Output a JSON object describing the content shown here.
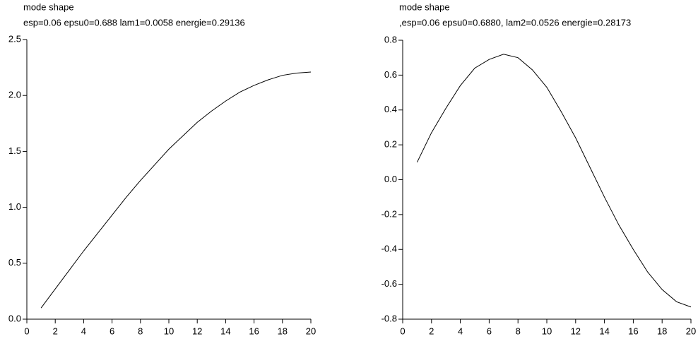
{
  "chart_data": [
    {
      "type": "line",
      "title": "mode shape",
      "subtitle": "esp=0.06 epsu0=0.688 lam1=0.0058 energie=0.29136",
      "x": [
        1,
        2,
        3,
        4,
        5,
        6,
        7,
        8,
        9,
        10,
        11,
        12,
        13,
        14,
        15,
        16,
        17,
        18,
        19,
        20
      ],
      "values": [
        0.1,
        0.27,
        0.44,
        0.61,
        0.77,
        0.93,
        1.09,
        1.24,
        1.38,
        1.52,
        1.64,
        1.76,
        1.86,
        1.95,
        2.03,
        2.09,
        2.14,
        2.18,
        2.2,
        2.21
      ],
      "color": "#000000",
      "xlim": [
        0,
        20
      ],
      "xticks": [
        0,
        2,
        4,
        6,
        8,
        10,
        12,
        14,
        16,
        18,
        20
      ],
      "ylim": [
        0,
        2.5
      ],
      "yticks": [
        {
          "value": 0,
          "label": "0.0"
        },
        0.5,
        {
          "value": 1,
          "label": "1.0"
        },
        1.5,
        {
          "value": 2,
          "label": "2.0"
        },
        2.5
      ]
    },
    {
      "type": "line",
      "title": "mode shape",
      "subtitle": ",esp=0.06 epsu0=0.6880, lam2=0.0526 energie=0.28173",
      "x": [
        1,
        2,
        3,
        4,
        5,
        6,
        7,
        8,
        9,
        10,
        11,
        12,
        13,
        14,
        15,
        16,
        17,
        18,
        19,
        20
      ],
      "values": [
        0.1,
        0.27,
        0.41,
        0.54,
        0.64,
        0.69,
        0.72,
        0.7,
        0.63,
        0.53,
        0.39,
        0.24,
        0.07,
        -0.1,
        -0.26,
        -0.4,
        -0.53,
        -0.63,
        -0.7,
        -0.73
      ],
      "color": "#000000",
      "xlim": [
        0,
        20
      ],
      "xticks": [
        0,
        2,
        4,
        6,
        8,
        10,
        12,
        14,
        16,
        18,
        20
      ],
      "ylim": [
        -0.8,
        0.8
      ],
      "yticks": [
        -0.8,
        -0.6,
        -0.4,
        -0.2,
        {
          "value": 0,
          "label": "0.0"
        },
        0.2,
        0.4,
        0.6,
        0.8
      ]
    }
  ]
}
